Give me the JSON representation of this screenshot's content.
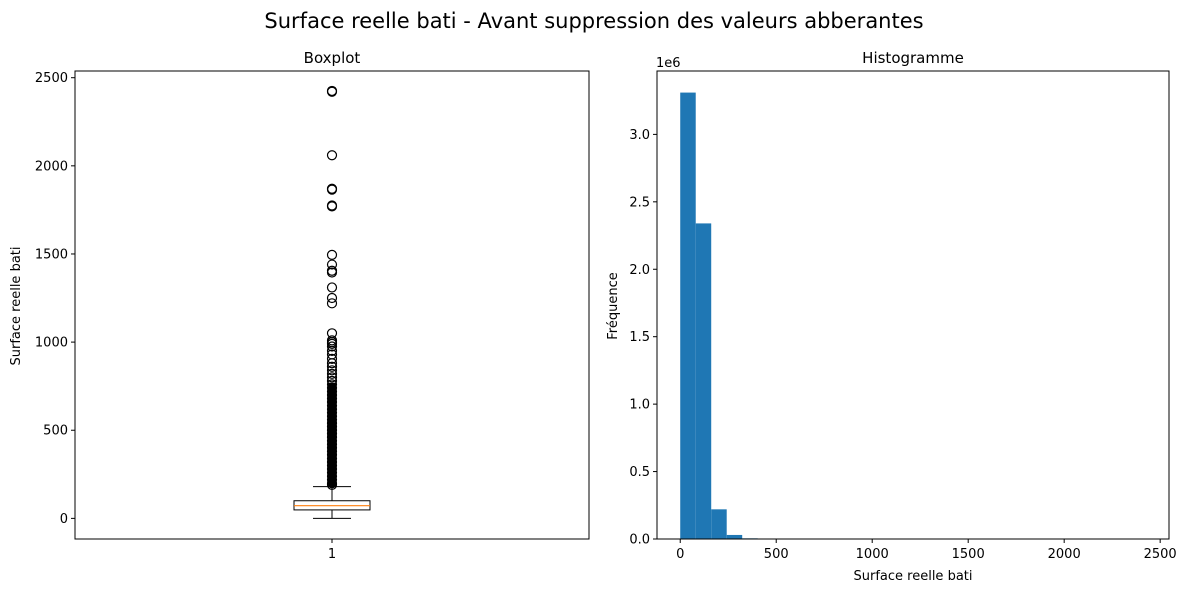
{
  "figure": {
    "title": "Surface reelle bati - Avant suppression des valeurs abberantes"
  },
  "chart_data": [
    {
      "type": "boxplot",
      "title": "Boxplot",
      "xlabel": "",
      "ylabel": "Surface reelle bati",
      "categories": [
        "1"
      ],
      "ylim": [
        -117,
        2538
      ],
      "yticks": [
        0,
        500,
        1000,
        1500,
        2000,
        2500
      ],
      "box": {
        "min": 0,
        "q1": 48,
        "median": 72,
        "q3": 100,
        "whisker_high": 180,
        "median_color": "#ff7f0e"
      },
      "outliers": [
        2425,
        2420,
        2060,
        1870,
        1865,
        1775,
        1770,
        1495,
        1440,
        1405,
        1395,
        1310,
        1250,
        1220,
        1050,
        1010,
        1000,
        990,
        975,
        950,
        930,
        905,
        880,
        860,
        840,
        820,
        800,
        780,
        760,
        740,
        720,
        700,
        680,
        660,
        640,
        620,
        600,
        580,
        560,
        540,
        520,
        500,
        480,
        460,
        440,
        420,
        400,
        380,
        360,
        340,
        320,
        300,
        280,
        260,
        240,
        220,
        200,
        190
      ]
    },
    {
      "type": "histogram",
      "title": "Histogramme",
      "xlabel": "Surface reelle bati",
      "ylabel": "Fréquence",
      "offset_label": "1e6",
      "xlim": [
        -121,
        2546
      ],
      "ylim": [
        0,
        3.47
      ],
      "xticks": [
        0,
        500,
        1000,
        1500,
        2000,
        2500
      ],
      "yticks": [
        0.0,
        0.5,
        1.0,
        1.5,
        2.0,
        2.5,
        3.0
      ],
      "bin_width": 80.7,
      "bin_start": 0,
      "values": [
        3.31,
        2.34,
        0.22,
        0.03,
        0.005,
        0.001,
        0,
        0,
        0,
        0,
        0,
        0,
        0,
        0,
        0,
        0,
        0,
        0,
        0,
        0,
        0,
        0,
        0,
        0,
        0,
        0,
        0,
        0,
        0,
        0
      ],
      "bar_color": "#1f77b4"
    }
  ]
}
